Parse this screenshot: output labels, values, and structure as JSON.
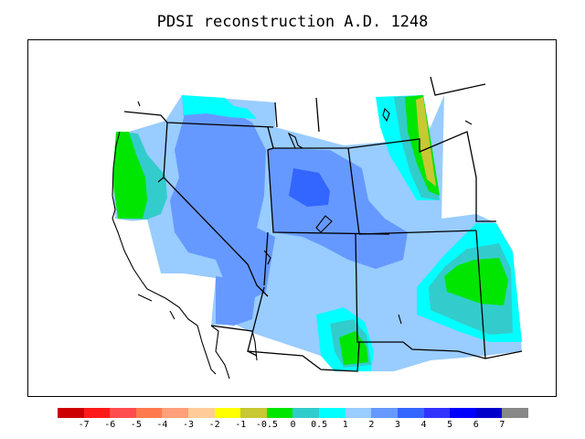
{
  "title": "PDSI reconstruction A.D. 1248",
  "colorbar": {
    "colors": [
      "#cc0000",
      "#ff1a1a",
      "#ff4d4d",
      "#ff7a4d",
      "#ffa07a",
      "#ffcc99",
      "#ffff00",
      "#c8c832",
      "#00e600",
      "#33cccc",
      "#00ffff",
      "#99ccff",
      "#6699ff",
      "#3366ff",
      "#3333ff",
      "#0000ff",
      "#0000cc",
      "#888888"
    ],
    "labels": [
      "-7",
      "-6",
      "-5",
      "-4",
      "-3",
      "-2",
      "-1",
      "-0.5",
      "0",
      "0.5",
      "1",
      "2",
      "3",
      "4",
      "5",
      "6",
      "7"
    ]
  }
}
